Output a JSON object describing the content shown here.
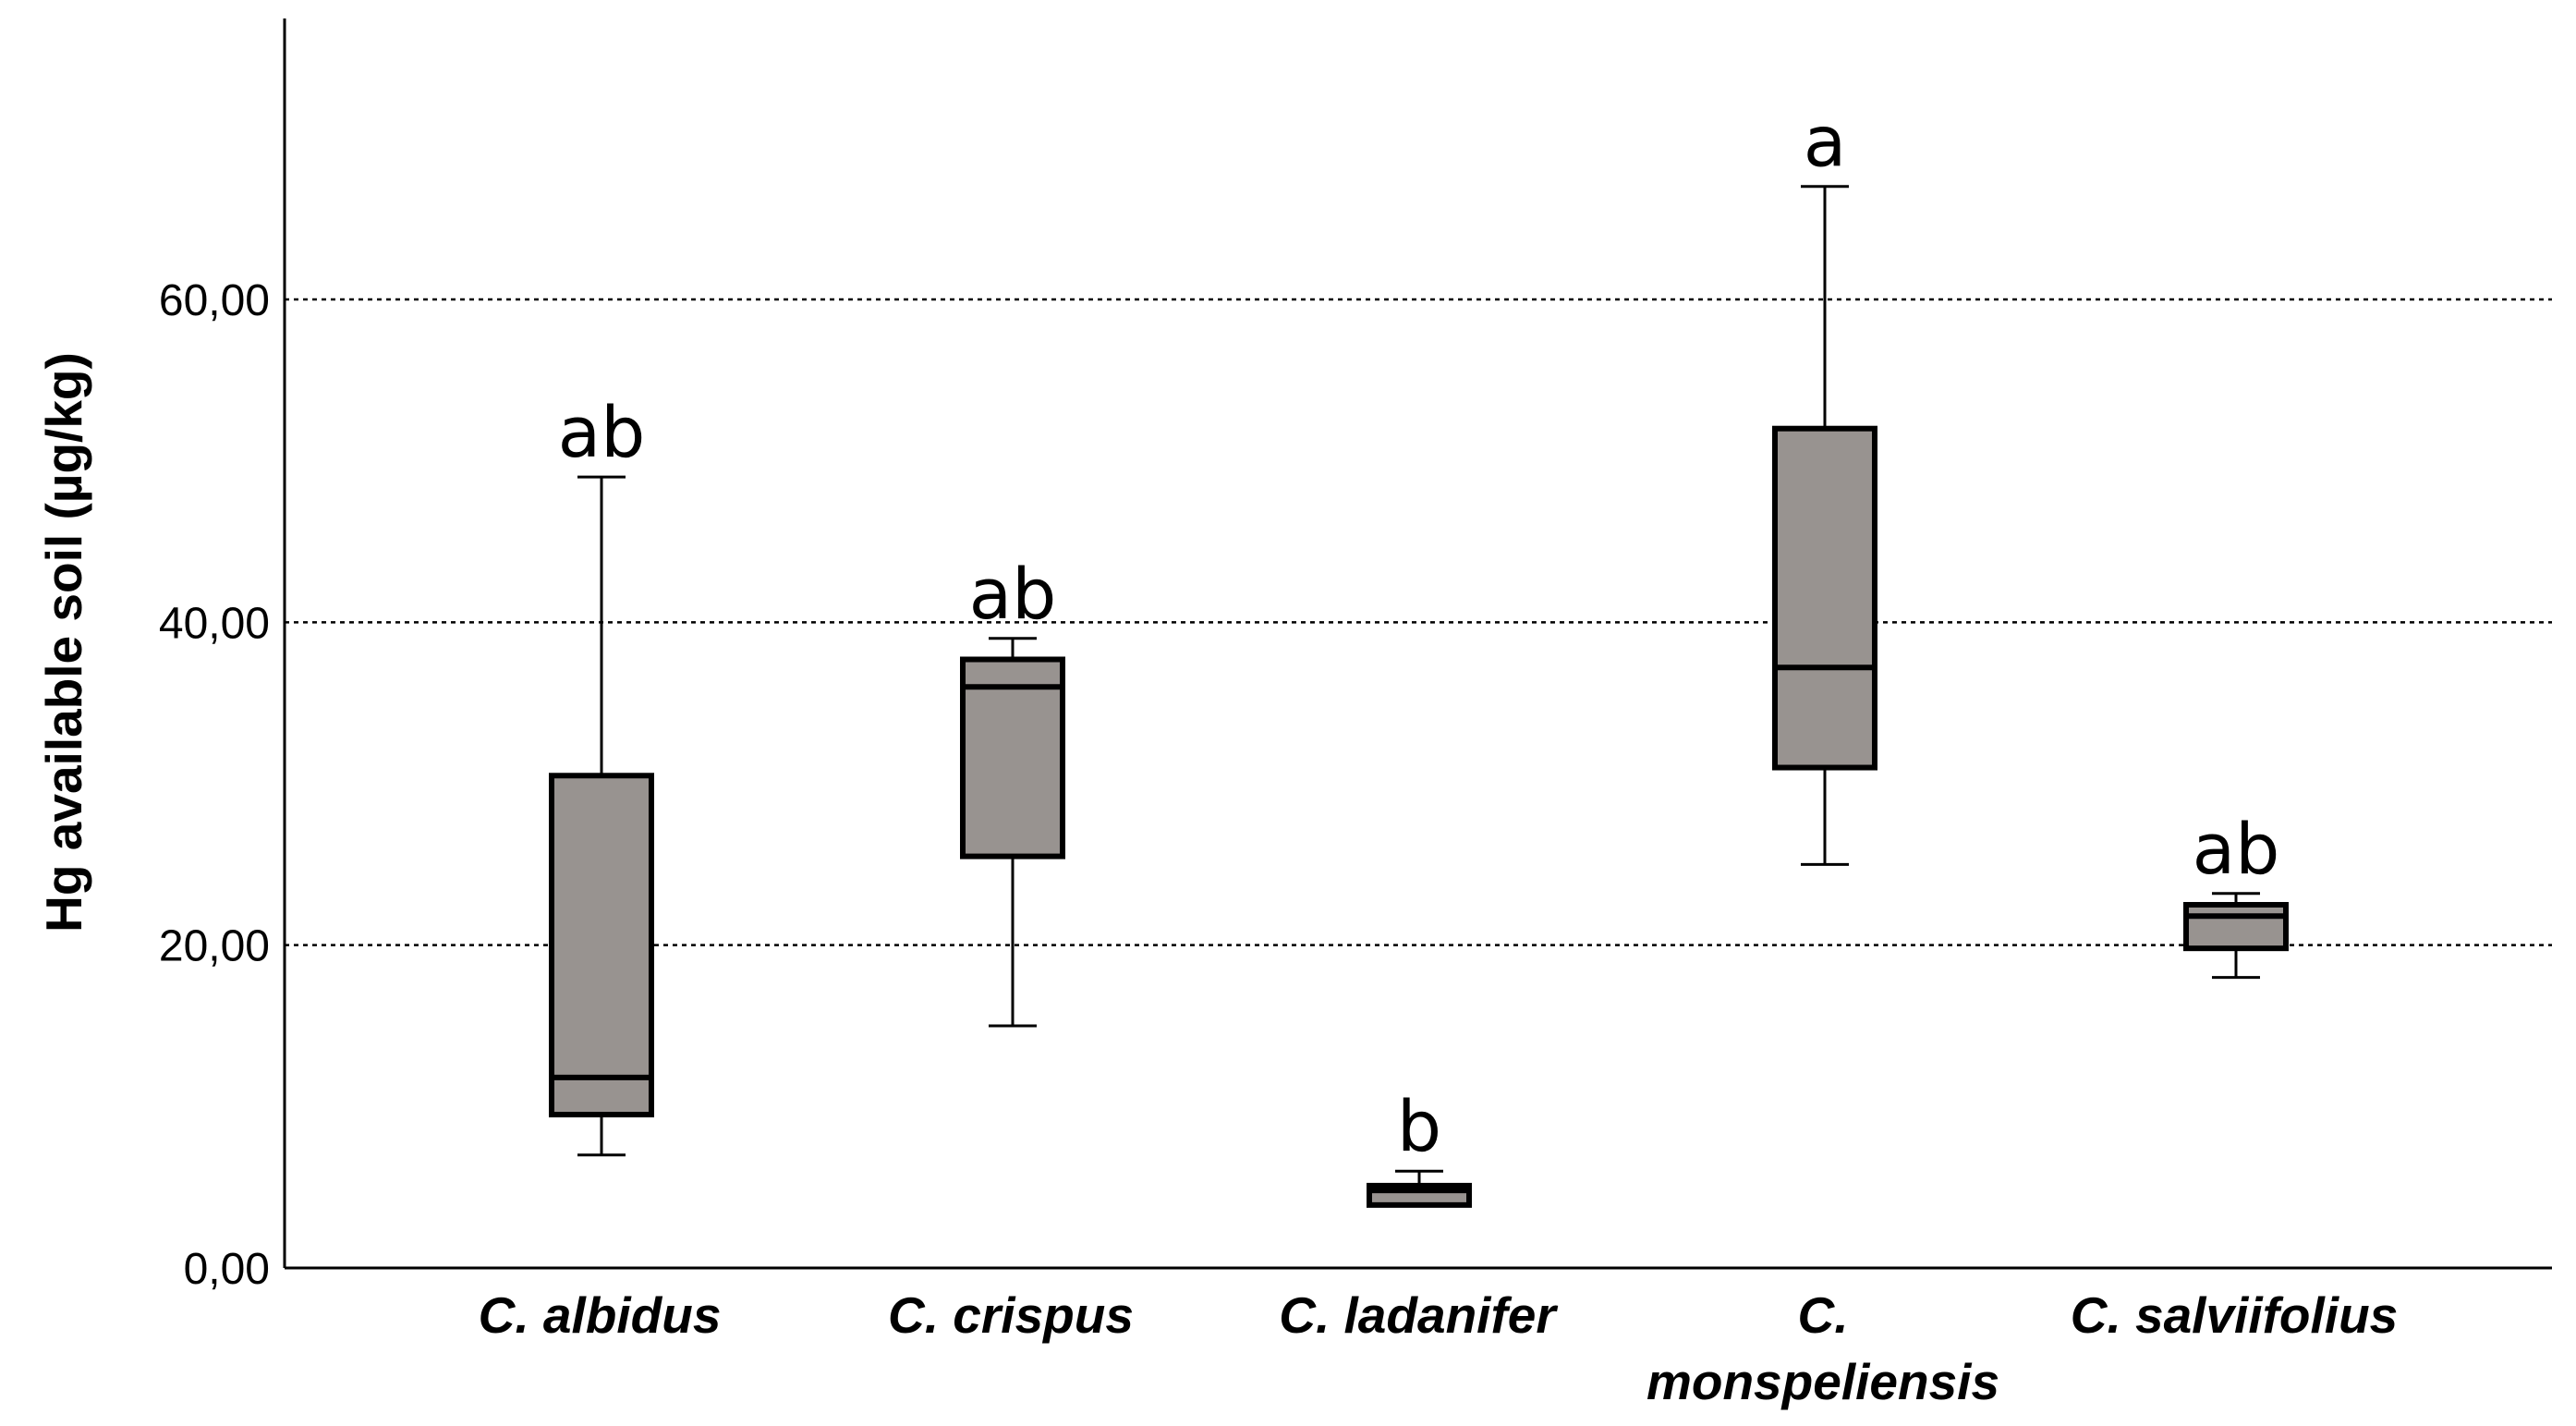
{
  "chart_data": {
    "type": "box",
    "title": "",
    "xlabel": "",
    "ylabel": "Hg available soil (µg/kg)",
    "ylim": [
      0,
      78
    ],
    "yticks": [
      0,
      20,
      40,
      60
    ],
    "ytick_labels": [
      "0,00",
      "20,00",
      "40,00",
      "60,00"
    ],
    "grid": "horizontal dashed at y ticks",
    "box_color": "#989390",
    "categories": [
      {
        "label_lines": [
          "C. albidus"
        ],
        "min": 7.0,
        "q1": 9.5,
        "median": 11.8,
        "q3": 30.5,
        "max": 49.0,
        "group": "ab"
      },
      {
        "label_lines": [
          "C. crispus"
        ],
        "min": 15.0,
        "q1": 25.5,
        "median": 36.0,
        "q3": 37.7,
        "max": 39.0,
        "group": "ab"
      },
      {
        "label_lines": [
          "C. ladanifer"
        ],
        "min": 3.9,
        "q1": 3.9,
        "median": 4.8,
        "q3": 5.1,
        "max": 6.0,
        "group": "b"
      },
      {
        "label_lines": [
          "C.",
          "monspeliensis"
        ],
        "min": 25.0,
        "q1": 31.0,
        "median": 37.2,
        "q3": 52.0,
        "max": 67.0,
        "group": "a"
      },
      {
        "label_lines": [
          "C. salviifolius"
        ],
        "min": 18.0,
        "q1": 19.8,
        "median": 21.8,
        "q3": 22.5,
        "max": 23.2,
        "group": "ab"
      }
    ]
  }
}
